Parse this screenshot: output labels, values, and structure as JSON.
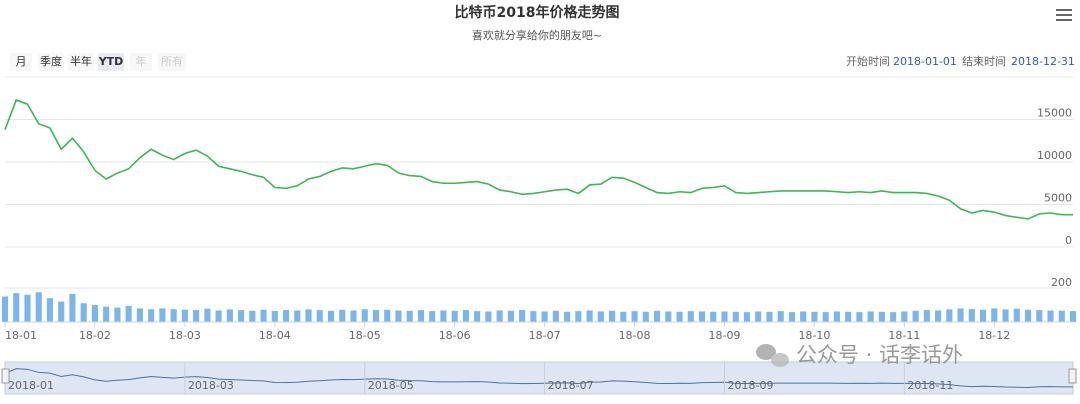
{
  "chart_data": {
    "type": "line",
    "title": "比特币2018年价格走势图",
    "subtitle": "喜欢就分享给你的朋友吧~",
    "categories": [
      "18-01",
      null,
      null,
      null,
      null,
      null,
      null,
      null,
      "18-02",
      null,
      null,
      null,
      null,
      null,
      null,
      null,
      "18-03",
      null,
      null,
      null,
      null,
      null,
      null,
      null,
      "18-04",
      null,
      null,
      null,
      null,
      null,
      null,
      null,
      "18-05",
      null,
      null,
      null,
      null,
      null,
      null,
      null,
      "18-06",
      null,
      null,
      null,
      null,
      null,
      null,
      null,
      "18-07",
      null,
      null,
      null,
      null,
      null,
      null,
      null,
      "18-08",
      null,
      null,
      null,
      null,
      null,
      null,
      null,
      "18-09",
      null,
      null,
      null,
      null,
      null,
      null,
      null,
      "18-10",
      null,
      null,
      null,
      null,
      null,
      null,
      null,
      "18-11",
      null,
      null,
      null,
      null,
      null,
      null,
      null,
      "18-12",
      null,
      null,
      null,
      null,
      null,
      null,
      null
    ],
    "series": [
      {
        "color": "#3cb853",
        "values": [
          13800,
          17300,
          16800,
          14500,
          14000,
          11500,
          12800,
          11200,
          9000,
          8000,
          8700,
          9200,
          10500,
          11500,
          10800,
          10300,
          11000,
          11400,
          10700,
          9500,
          9200,
          8900,
          8500,
          8200,
          7000,
          6900,
          7200,
          8000,
          8300,
          8900,
          9300,
          9200,
          9500,
          9800,
          9600,
          8700,
          8400,
          8300,
          7700,
          7500,
          7500,
          7600,
          7700,
          7400,
          6700,
          6500,
          6200,
          6300,
          6500,
          6700,
          6800,
          6300,
          7300,
          7400,
          8200,
          8100,
          7600,
          7000,
          6400,
          6300,
          6500,
          6400,
          6900,
          7000,
          7200,
          6400,
          6300,
          6400,
          6500,
          6600,
          6600,
          6600,
          6600,
          6600,
          6500,
          6400,
          6500,
          6400,
          6600,
          6400,
          6400,
          6400,
          6300,
          6000,
          5500,
          4500,
          4000,
          4300,
          4100,
          3700,
          3500,
          3300,
          3900,
          4000,
          3800,
          3800
        ]
      },
      {
        "type": "column",
        "axis": "y2",
        "color": "#7cb5ec",
        "values": [
          150,
          170,
          160,
          175,
          140,
          120,
          165,
          110,
          100,
          90,
          85,
          95,
          80,
          75,
          80,
          75,
          72,
          70,
          78,
          68,
          74,
          70,
          66,
          72,
          65,
          70,
          68,
          74,
          70,
          66,
          72,
          68,
          75,
          70,
          72,
          68,
          66,
          70,
          64,
          68,
          66,
          70,
          64,
          62,
          68,
          66,
          70,
          64,
          62,
          66,
          60,
          64,
          68,
          62,
          66,
          60,
          64,
          60,
          66,
          62,
          60,
          64,
          62,
          60,
          62,
          60,
          58,
          62,
          60,
          64,
          58,
          62,
          60,
          58,
          62,
          60,
          58,
          62,
          60,
          58,
          62,
          66,
          70,
          68,
          74,
          80,
          76,
          72,
          80,
          74,
          78,
          72,
          70,
          68,
          66,
          64
        ]
      }
    ],
    "ylim": [
      0,
      20000
    ],
    "yticks": [
      0,
      5000,
      10000,
      15000
    ],
    "y2lim": [
      0,
      200
    ],
    "y2ticks": [
      200
    ],
    "grid": true
  },
  "ui": {
    "range_buttons": [
      "月",
      "季度",
      "半年",
      "YTD",
      "年",
      "所有"
    ],
    "selected_button": 3,
    "disabled_buttons": [
      4,
      5
    ],
    "start_label": "开始时间",
    "start_date": "2018-01-01",
    "end_label": "结束时间",
    "end_date": "2018-12-31",
    "navigator_labels": [
      "2018-01",
      "2018-03",
      "2018-05",
      "2018-07",
      "2018-09",
      "2018-11"
    ],
    "watermark": "公众号 · 话李话外"
  }
}
